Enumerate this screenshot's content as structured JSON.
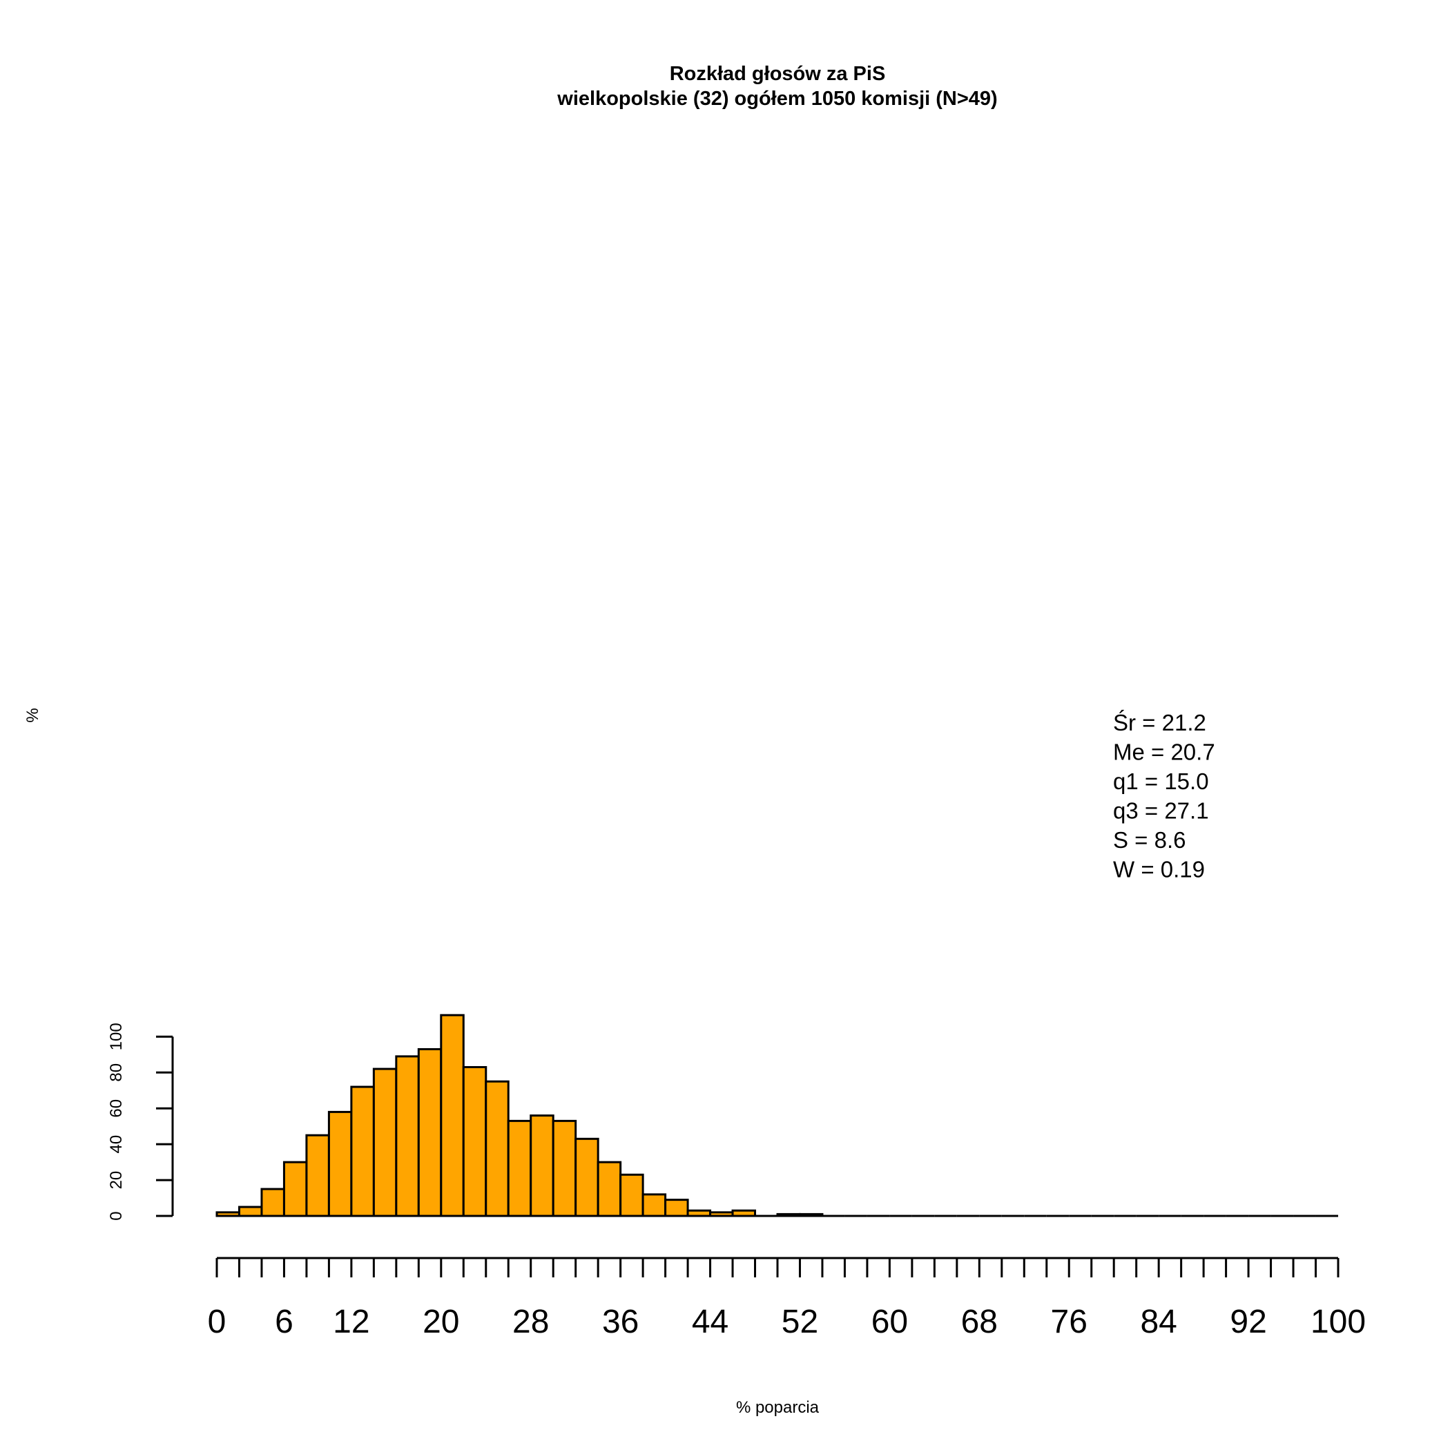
{
  "chart_data": {
    "type": "bar",
    "title": "Rozkład głosów za PiS",
    "subtitle": "wielkopolskie (32) ogółem 1050 komisji (N>49)",
    "xlabel": "% poparcia",
    "ylabel": "%",
    "bin_width": 2,
    "bins_start": 0,
    "values": [
      2,
      5,
      15,
      30,
      45,
      58,
      72,
      82,
      89,
      93,
      112,
      83,
      75,
      53,
      56,
      53,
      43,
      30,
      23,
      12,
      9,
      3,
      2,
      3,
      0,
      1,
      1,
      0,
      0,
      0,
      0,
      0,
      0,
      0,
      0,
      0,
      0,
      0,
      0,
      0,
      0,
      0,
      0,
      0,
      0,
      0,
      0,
      0,
      0,
      0
    ],
    "ylim": [
      0,
      100
    ],
    "xlim": [
      0,
      100
    ],
    "yticks": [
      0,
      20,
      40,
      60,
      80,
      100
    ],
    "xticks": [
      0,
      6,
      12,
      20,
      28,
      36,
      44,
      52,
      60,
      68,
      76,
      84,
      92,
      100
    ],
    "bar_color": "#FFA500",
    "grid": false,
    "annotations": [
      "Śr = 21.2",
      "Me = 20.7",
      "q1 = 15.0",
      "q3 = 27.1",
      "S = 8.6",
      "W = 0.19"
    ]
  }
}
